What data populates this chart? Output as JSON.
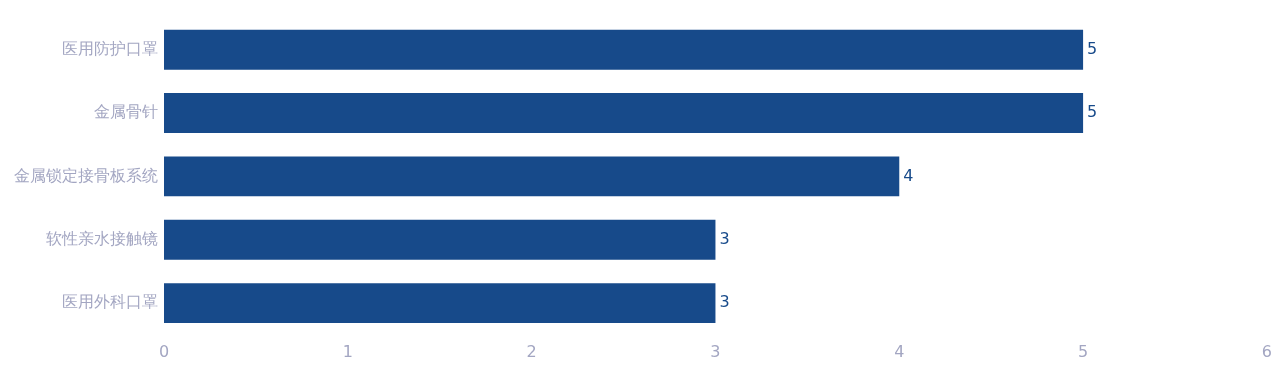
{
  "chart_data": {
    "type": "bar",
    "orientation": "horizontal",
    "categories": [
      "医用防护口罩",
      "金属骨针",
      "金属锁定接骨板系统",
      "软性亲水接触镜",
      "医用外科口罩"
    ],
    "values": [
      5,
      5,
      4,
      3,
      3
    ],
    "color": "#174a8a",
    "xlim": [
      0,
      6
    ],
    "xticks": [
      0,
      1,
      2,
      3,
      4,
      5,
      6
    ],
    "data_labels": true,
    "legend": false
  }
}
